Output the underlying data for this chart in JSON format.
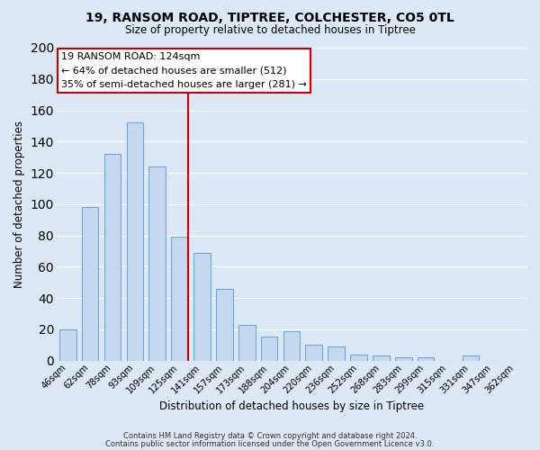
{
  "title": "19, RANSOM ROAD, TIPTREE, COLCHESTER, CO5 0TL",
  "subtitle": "Size of property relative to detached houses in Tiptree",
  "xlabel": "Distribution of detached houses by size in Tiptree",
  "ylabel": "Number of detached properties",
  "bar_color": "#c5d8ef",
  "bar_edge_color": "#6aaad4",
  "categories": [
    "46sqm",
    "62sqm",
    "78sqm",
    "93sqm",
    "109sqm",
    "125sqm",
    "141sqm",
    "157sqm",
    "173sqm",
    "188sqm",
    "204sqm",
    "220sqm",
    "236sqm",
    "252sqm",
    "268sqm",
    "283sqm",
    "299sqm",
    "315sqm",
    "331sqm",
    "347sqm",
    "362sqm"
  ],
  "values": [
    20,
    98,
    132,
    152,
    124,
    79,
    69,
    46,
    23,
    15,
    19,
    10,
    9,
    4,
    3,
    2,
    2,
    0,
    3,
    0,
    0
  ],
  "ylim": [
    0,
    200
  ],
  "yticks": [
    0,
    20,
    40,
    60,
    80,
    100,
    120,
    140,
    160,
    180,
    200
  ],
  "vline_index": 5,
  "vline_color": "#cc0000",
  "annotation_title": "19 RANSOM ROAD: 124sqm",
  "annotation_line1": "← 64% of detached houses are smaller (512)",
  "annotation_line2": "35% of semi-detached houses are larger (281) →",
  "annotation_box_color": "#ffffff",
  "annotation_box_edge": "#cc0000",
  "footer1": "Contains HM Land Registry data © Crown copyright and database right 2024.",
  "footer2": "Contains public sector information licensed under the Open Government Licence v3.0.",
  "bg_color": "#dce8f5",
  "grid_color": "#ffffff",
  "bar_width": 0.75
}
